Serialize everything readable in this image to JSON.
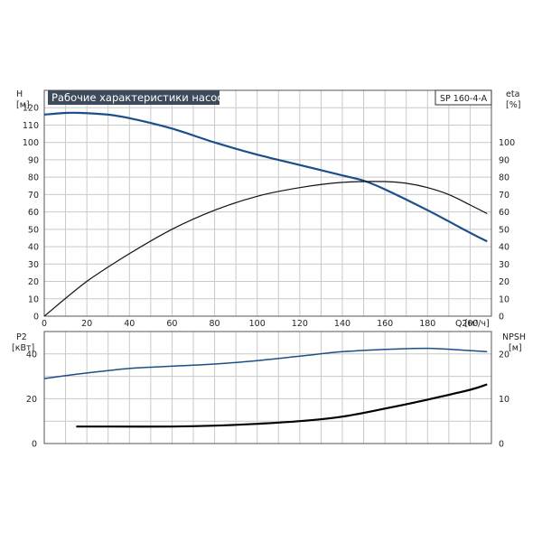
{
  "chart_data": [
    {
      "type": "line",
      "title": "Рабочие характеристики насоса",
      "model_label": "SP 160-4-A",
      "xlabel": "Q [м³/ч]",
      "xlim": [
        0,
        210
      ],
      "xticks": [
        0,
        20,
        40,
        60,
        80,
        100,
        120,
        140,
        160,
        180,
        200
      ],
      "grid": true,
      "left_axis": {
        "label_line1": "H",
        "label_line2": "[м]",
        "ylim": [
          0,
          130
        ],
        "ticks": [
          0,
          10,
          20,
          30,
          40,
          50,
          60,
          70,
          80,
          90,
          100,
          110,
          120
        ]
      },
      "right_axis": {
        "label_line1": "eta",
        "label_line2": "[%]",
        "ylim": [
          0,
          130
        ],
        "ticks": [
          0,
          10,
          20,
          30,
          40,
          50,
          60,
          70,
          80,
          90,
          100
        ]
      },
      "series": [
        {
          "color": "#1a4f8a",
          "axis": "left",
          "x": [
            0,
            10,
            17,
            30,
            40,
            60,
            80,
            100,
            120,
            140,
            150,
            160,
            180,
            200,
            208
          ],
          "y": [
            116,
            117,
            117,
            116,
            114,
            108,
            100,
            93,
            87,
            81,
            78,
            73,
            61,
            48,
            43
          ]
        },
        {
          "color": "#111111",
          "axis": "right",
          "x": [
            0,
            20,
            40,
            60,
            80,
            100,
            120,
            140,
            160,
            170,
            180,
            190,
            200,
            208
          ],
          "y": [
            0,
            20,
            36,
            50,
            61,
            69,
            74,
            77,
            77.5,
            76.5,
            74,
            70,
            64,
            59
          ]
        }
      ]
    },
    {
      "type": "line",
      "xlim": [
        0,
        210
      ],
      "grid": true,
      "left_axis": {
        "label_line1": "P2",
        "label_line2": "[кВт]",
        "ylim": [
          0,
          50
        ],
        "ticks": [
          0,
          20,
          40
        ]
      },
      "right_axis": {
        "label_line1": "NPSH",
        "label_line2": "[м]",
        "ylim": [
          0,
          25
        ],
        "ticks": [
          0,
          10,
          20
        ]
      },
      "series": [
        {
          "color": "#1a4f8a",
          "axis": "left",
          "x": [
            0,
            20,
            40,
            60,
            80,
            100,
            120,
            140,
            160,
            180,
            200,
            208
          ],
          "y": [
            29,
            31.5,
            33.5,
            34.5,
            35.5,
            37,
            39,
            41,
            42,
            42.5,
            41.5,
            41
          ]
        },
        {
          "color": "#000000",
          "axis": "right",
          "x": [
            15,
            30,
            60,
            80,
            100,
            120,
            140,
            160,
            180,
            200,
            208
          ],
          "y": [
            3.8,
            3.8,
            3.8,
            4,
            4.4,
            5,
            6,
            7.8,
            9.8,
            12,
            13.2
          ]
        }
      ]
    }
  ]
}
